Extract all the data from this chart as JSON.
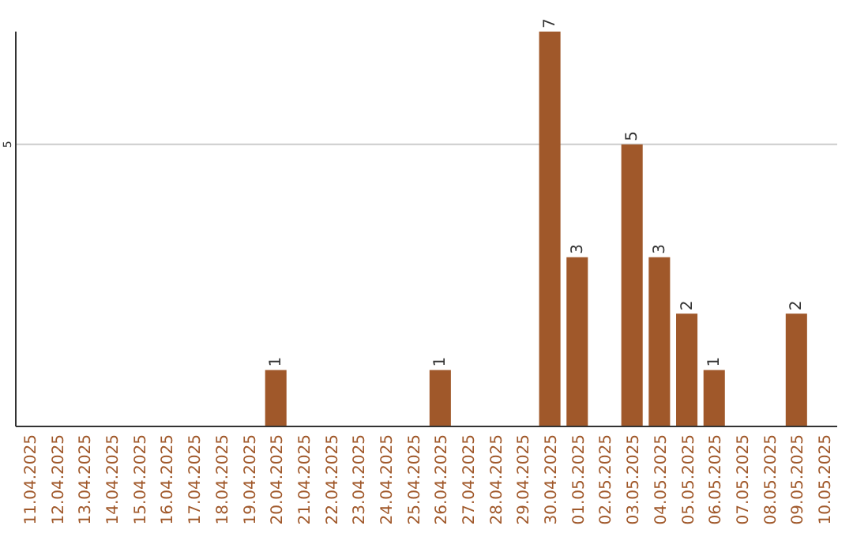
{
  "chart_data": {
    "type": "bar",
    "categories": [
      "11.04.2025",
      "12.04.2025",
      "13.04.2025",
      "14.04.2025",
      "15.04.2025",
      "16.04.2025",
      "17.04.2025",
      "18.04.2025",
      "19.04.2025",
      "20.04.2025",
      "21.04.2025",
      "22.04.2025",
      "23.04.2025",
      "24.04.2025",
      "25.04.2025",
      "26.04.2025",
      "27.04.2025",
      "28.04.2025",
      "29.04.2025",
      "30.04.2025",
      "01.05.2025",
      "02.05.2025",
      "03.05.2025",
      "04.05.2025",
      "05.05.2025",
      "06.05.2025",
      "07.05.2025",
      "08.05.2025",
      "09.05.2025",
      "10.05.2025"
    ],
    "values": [
      0,
      0,
      0,
      0,
      0,
      0,
      0,
      0,
      0,
      1,
      0,
      0,
      0,
      0,
      0,
      1,
      0,
      0,
      0,
      7,
      3,
      0,
      5,
      3,
      2,
      1,
      0,
      0,
      2,
      0
    ],
    "value_labels": [
      null,
      null,
      null,
      null,
      null,
      null,
      null,
      null,
      null,
      "1",
      null,
      null,
      null,
      null,
      null,
      "1",
      null,
      null,
      null,
      "7",
      "3",
      null,
      "5",
      "3",
      "2",
      "1",
      null,
      null,
      "2",
      null
    ],
    "color": "#a0582a",
    "ylim": [
      0,
      7
    ],
    "yticks": [
      5
    ],
    "grid": "y"
  }
}
